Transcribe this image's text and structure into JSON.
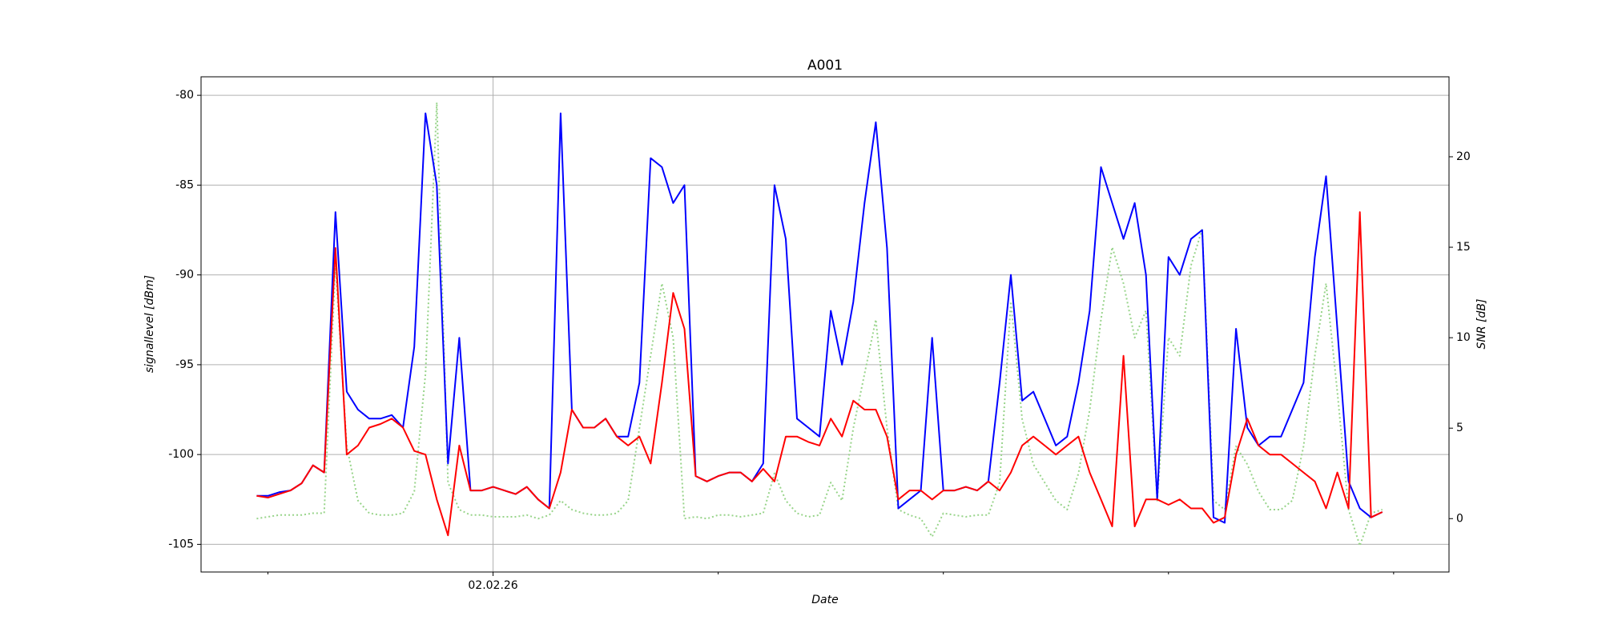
{
  "chart_data": {
    "type": "line",
    "title": "A001",
    "xlabel": "Date",
    "ylabel": "signallevel [dBm]",
    "y2label": "SNR [dB]",
    "x": [
      -0.05,
      0,
      0.05,
      0.1,
      0.15,
      0.2,
      0.25,
      0.3,
      0.35,
      0.4,
      0.45,
      0.5,
      0.55,
      0.6,
      0.65,
      0.7,
      0.75,
      0.8,
      0.85,
      0.9,
      0.95,
      1,
      1.05,
      1.1,
      1.15,
      1.2,
      1.25,
      1.3,
      1.35,
      1.4,
      1.45,
      1.5,
      1.55,
      1.6,
      1.65,
      1.7,
      1.75,
      1.8,
      1.85,
      1.9,
      1.95,
      2,
      2.05,
      2.1,
      2.15,
      2.2,
      2.25,
      2.3,
      2.35,
      2.4,
      2.45,
      2.5,
      2.55,
      2.6,
      2.65,
      2.7,
      2.75,
      2.8,
      2.85,
      2.9,
      2.95,
      3,
      3.05,
      3.1,
      3.15,
      3.2,
      3.25,
      3.3,
      3.35,
      3.4,
      3.45,
      3.5,
      3.55,
      3.6,
      3.65,
      3.7,
      3.75,
      3.8,
      3.85,
      3.9,
      3.95,
      4,
      4.05,
      4.1,
      4.15,
      4.2,
      4.25,
      4.3,
      4.35,
      4.4,
      4.45,
      4.5,
      4.55,
      4.6,
      4.65,
      4.7,
      4.75,
      4.8,
      4.85,
      4.9,
      4.95
    ],
    "xlim": [
      -0.297,
      5.246
    ],
    "xticks": [
      {
        "value": 1,
        "label": "02.02.26"
      }
    ],
    "xminorticks": [
      0,
      2,
      3,
      4,
      5
    ],
    "ylim": [
      -106.54,
      -78.97
    ],
    "yticks": [
      -105,
      -100,
      -95,
      -90,
      -85,
      -80
    ],
    "y2lim": [
      -2.95,
      24.42
    ],
    "y2ticks": [
      0,
      5,
      10,
      15,
      20
    ],
    "grid": true,
    "series": [
      {
        "color": "#0000ff",
        "linestyle": "solid",
        "values": [
          -102.3,
          -102.3,
          -102.1,
          -102.0,
          -101.6,
          -100.6,
          -101.0,
          -86.5,
          -96.5,
          -97.5,
          -98.0,
          -98.0,
          -97.8,
          -98.5,
          -94.0,
          -81.0,
          -85.0,
          -100.5,
          -93.5,
          -102.0,
          -102.0,
          -101.8,
          -102.0,
          -102.2,
          -101.8,
          -102.5,
          -103.0,
          -81.0,
          -97.5,
          -98.5,
          -98.5,
          -98.0,
          -99.0,
          -99.0,
          -96.0,
          -83.5,
          -84.0,
          -86.0,
          -85.0,
          -101.2,
          -101.5,
          -101.2,
          -101.0,
          -101.0,
          -101.5,
          -100.5,
          -85.0,
          -88.0,
          -98.0,
          -98.5,
          -99.0,
          -92.0,
          -95.0,
          -91.5,
          -86.0,
          -81.5,
          -88.5,
          -103.0,
          -102.5,
          -102.0,
          -93.5,
          -102.0,
          -102.0,
          -101.8,
          -102.0,
          -101.5,
          -96.0,
          -90.0,
          -97.0,
          -96.5,
          -98.0,
          -99.5,
          -99.0,
          -96.0,
          -92.0,
          -84.0,
          -86.0,
          -88.0,
          -86.0,
          -90.0,
          -102.5,
          -89.0,
          -90.0,
          -88.0,
          -87.5,
          -103.5,
          -103.8,
          -93.0,
          -98.5,
          -99.5,
          -99.0,
          -99.0,
          -97.5,
          -96.0,
          -89.0,
          -84.5,
          -93.0,
          -101.5,
          -103.0,
          -103.5,
          -103.2
        ]
      },
      {
        "color": "#ff0000",
        "linestyle": "solid",
        "values": [
          -102.3,
          -102.4,
          -102.2,
          -102.0,
          -101.6,
          -100.6,
          -101.0,
          -88.5,
          -100.0,
          -99.5,
          -98.5,
          -98.3,
          -98.0,
          -98.5,
          -99.8,
          -100.0,
          -102.5,
          -104.5,
          -99.5,
          -102.0,
          -102.0,
          -101.8,
          -102.0,
          -102.2,
          -101.8,
          -102.5,
          -103.0,
          -101.0,
          -97.5,
          -98.5,
          -98.5,
          -98.0,
          -99.0,
          -99.5,
          -99.0,
          -100.5,
          -96.0,
          -91.0,
          -93.0,
          -101.2,
          -101.5,
          -101.2,
          -101.0,
          -101.0,
          -101.5,
          -100.8,
          -101.5,
          -99.0,
          -99.0,
          -99.3,
          -99.5,
          -98.0,
          -99.0,
          -97.0,
          -97.5,
          -97.5,
          -99.0,
          -102.5,
          -102.0,
          -102.0,
          -102.5,
          -102.0,
          -102.0,
          -101.8,
          -102.0,
          -101.5,
          -102.0,
          -101.0,
          -99.5,
          -99.0,
          -99.5,
          -100.0,
          -99.5,
          -99.0,
          -101.0,
          -102.5,
          -104.0,
          -94.5,
          -104.0,
          -102.5,
          -102.5,
          -102.8,
          -102.5,
          -103.0,
          -103.0,
          -103.8,
          -103.5,
          -100.0,
          -98.0,
          -99.5,
          -100.0,
          -100.0,
          -100.5,
          -101.0,
          -101.5,
          -103.0,
          -101.0,
          -103.0,
          -86.5,
          -103.5,
          -103.2
        ]
      },
      {
        "color": "#98d48a",
        "linestyle": "dotted",
        "axis": "y2",
        "values": [
          0.0,
          0.1,
          0.2,
          0.2,
          0.2,
          0.3,
          0.3,
          14.0,
          4.0,
          1.0,
          0.3,
          0.2,
          0.2,
          0.3,
          1.5,
          8.0,
          23.0,
          2.0,
          0.5,
          0.2,
          0.2,
          0.1,
          0.1,
          0.1,
          0.2,
          0.0,
          0.2,
          1.0,
          0.5,
          0.3,
          0.2,
          0.2,
          0.3,
          1.0,
          5.0,
          9.0,
          13.0,
          10.0,
          0.0,
          0.1,
          0.0,
          0.2,
          0.2,
          0.1,
          0.2,
          0.3,
          2.5,
          1.0,
          0.3,
          0.1,
          0.2,
          2.0,
          1.0,
          5.0,
          8.0,
          11.0,
          5.0,
          0.5,
          0.2,
          0.0,
          -1.0,
          0.3,
          0.2,
          0.1,
          0.2,
          0.2,
          2.0,
          12.0,
          5.5,
          3.0,
          2.0,
          1.0,
          0.5,
          2.5,
          6.0,
          11.0,
          15.0,
          13.0,
          10.0,
          11.5,
          1.0,
          10.0,
          9.0,
          14.0,
          16.0,
          1.0,
          0.5,
          4.0,
          3.0,
          1.5,
          0.5,
          0.5,
          1.0,
          4.0,
          9.0,
          13.0,
          7.0,
          0.5,
          -1.5,
          0.3,
          0.5
        ]
      }
    ]
  }
}
